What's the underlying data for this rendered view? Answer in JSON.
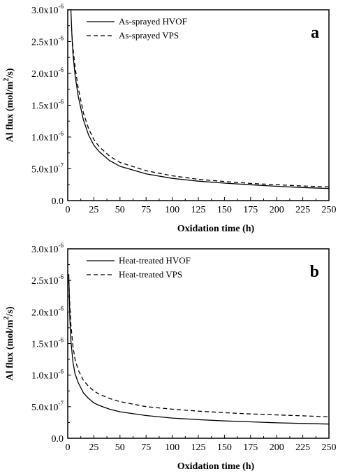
{
  "chart_data": [
    {
      "type": "line",
      "panel_label": "a",
      "xlabel": "Oxidation time (h)",
      "ylabel": "Al flux (mol/m2/s)",
      "xlim": [
        0,
        250
      ],
      "ylim": [
        0,
        3e-06
      ],
      "x_ticks": [
        "0",
        "25",
        "50",
        "75",
        "100",
        "125",
        "150",
        "175",
        "200",
        "225",
        "250"
      ],
      "y_ticks": [
        {
          "mant": "0.0",
          "exp": ""
        },
        {
          "mant": "5.0x10",
          "exp": "-7"
        },
        {
          "mant": "1.0x10",
          "exp": "-6"
        },
        {
          "mant": "1.5x10",
          "exp": "-6"
        },
        {
          "mant": "2.0x10",
          "exp": "-6"
        },
        {
          "mant": "2.5x10",
          "exp": "-6"
        },
        {
          "mant": "3.0x10",
          "exp": "-6"
        }
      ],
      "legend_position": "top-left",
      "series": [
        {
          "name": "As-sprayed HVOF",
          "style": "solid",
          "x": [
            3,
            4,
            5,
            7,
            10,
            15,
            20,
            25,
            30,
            40,
            50,
            75,
            100,
            125,
            150,
            175,
            200,
            225,
            250
          ],
          "y": [
            3e-06,
            2.6e-06,
            2.3e-06,
            1.97e-06,
            1.64e-06,
            1.27e-06,
            1.03e-06,
            8.7e-07,
            7.7e-07,
            6.3e-07,
            5.4e-07,
            4.2e-07,
            3.5e-07,
            3.05e-07,
            2.75e-07,
            2.5e-07,
            2.25e-07,
            2.05e-07,
            1.9e-07
          ]
        },
        {
          "name": "As-sprayed VPS",
          "style": "dashed",
          "x": [
            4,
            5,
            7,
            10,
            15,
            20,
            25,
            30,
            40,
            50,
            75,
            100,
            125,
            150,
            175,
            200,
            225,
            250
          ],
          "y": [
            2.6e-06,
            2.4e-06,
            2.1e-06,
            1.77e-06,
            1.38e-06,
            1.13e-06,
            9.6e-07,
            8.5e-07,
            7e-07,
            6e-07,
            4.7e-07,
            3.9e-07,
            3.35e-07,
            3e-07,
            2.7e-07,
            2.5e-07,
            2.3e-07,
            2.15e-07
          ]
        }
      ]
    },
    {
      "type": "line",
      "panel_label": "b",
      "xlabel": "Oxidation time (h)",
      "ylabel": "Al flux (mol/m2/s)",
      "xlim": [
        0,
        250
      ],
      "ylim": [
        0,
        3e-06
      ],
      "x_ticks": [
        "0",
        "25",
        "50",
        "75",
        "100",
        "125",
        "150",
        "175",
        "200",
        "225",
        "250"
      ],
      "y_ticks": [
        {
          "mant": "0.0",
          "exp": ""
        },
        {
          "mant": "5.0x10",
          "exp": "-7"
        },
        {
          "mant": "1.0x10",
          "exp": "-6"
        },
        {
          "mant": "1.5x10",
          "exp": "-6"
        },
        {
          "mant": "2.0x10",
          "exp": "-6"
        },
        {
          "mant": "2.5x10",
          "exp": "-6"
        },
        {
          "mant": "3.0x10",
          "exp": "-6"
        }
      ],
      "legend_position": "top-left",
      "series": [
        {
          "name": "Heat-treated HVOF",
          "style": "solid",
          "x": [
            1,
            2,
            3,
            5,
            7,
            10,
            15,
            20,
            25,
            30,
            40,
            50,
            75,
            100,
            125,
            150,
            175,
            200,
            225,
            250
          ],
          "y": [
            2.6e-06,
            1.9e-06,
            1.55e-06,
            1.2e-06,
            1.02e-06,
            8.8e-07,
            7.2e-07,
            6.3e-07,
            5.6e-07,
            5.2e-07,
            4.6e-07,
            4.2e-07,
            3.6e-07,
            3.2e-07,
            2.95e-07,
            2.75e-07,
            2.6e-07,
            2.45e-07,
            2.35e-07,
            2.25e-07
          ]
        },
        {
          "name": "Heat-treated VPS",
          "style": "dashed",
          "x": [
            1,
            2,
            3,
            5,
            7,
            10,
            15,
            20,
            25,
            30,
            40,
            50,
            75,
            100,
            125,
            150,
            175,
            200,
            225,
            250
          ],
          "y": [
            2.5e-06,
            2.1e-06,
            1.8e-06,
            1.45e-06,
            1.25e-06,
            1.08e-06,
            9.2e-07,
            8.2e-07,
            7.5e-07,
            7e-07,
            6.3e-07,
            5.8e-07,
            5e-07,
            4.6e-07,
            4.3e-07,
            4.05e-07,
            3.85e-07,
            3.7e-07,
            3.55e-07,
            3.4e-07
          ]
        }
      ]
    }
  ]
}
